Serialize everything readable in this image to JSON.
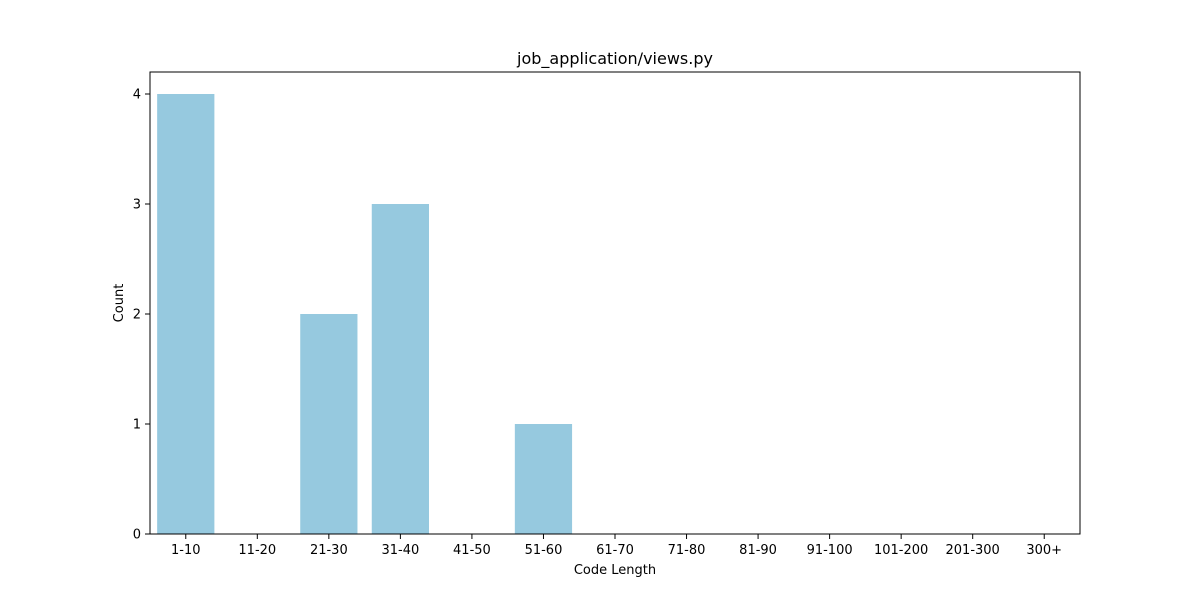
{
  "chart_data": {
    "type": "bar",
    "title": "job_application/views.py",
    "xlabel": "Code Length",
    "ylabel": "Count",
    "categories": [
      "1-10",
      "11-20",
      "21-30",
      "31-40",
      "41-50",
      "51-60",
      "61-70",
      "71-80",
      "81-90",
      "91-100",
      "101-200",
      "201-300",
      "300+"
    ],
    "values": [
      4,
      0,
      2,
      3,
      0,
      1,
      0,
      0,
      0,
      0,
      0,
      0,
      0
    ],
    "ylim": [
      0,
      4.2
    ],
    "yticks": [
      0,
      1,
      2,
      3,
      4
    ],
    "grid": false,
    "legend": "none",
    "bar_color": "#96c9df"
  }
}
